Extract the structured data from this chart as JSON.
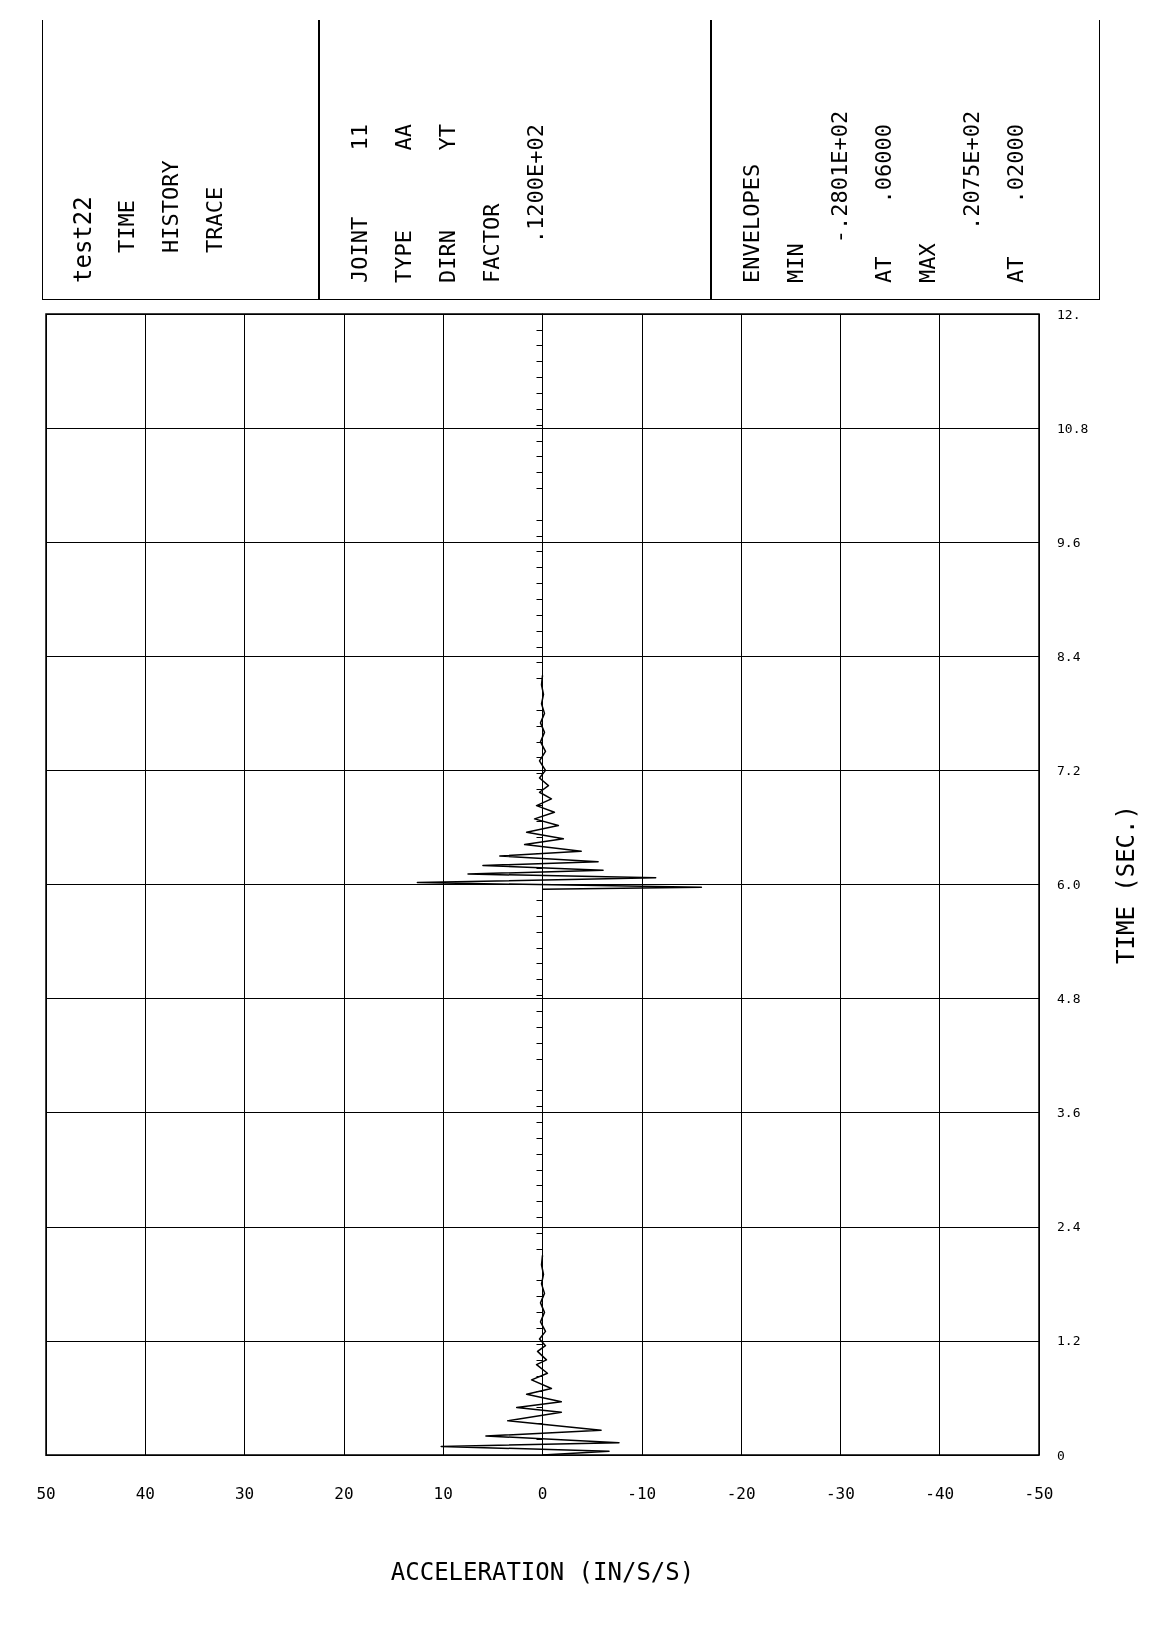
{
  "chart_data": {
    "type": "line",
    "title": "test22",
    "subtitle": "TIME\nHISTORY\nTRACE",
    "annotations": [
      "JOINT     11\nTYPE      AA\nDIRN      YT\nFACTOR\n   .1200E+02",
      "ENVELOPES\nMIN\n   -.2801E+02\nAT    .06000\nMAX\n    .2075E+02\nAT    .02000"
    ],
    "xlabel": "ACCELERATION (IN/S/S)",
    "ylabel": "TIME (SEC.)",
    "ylim": [
      0,
      12
    ],
    "yticks": [
      0,
      1.2,
      2.4,
      3.6,
      4.8,
      {
        "value": 6,
        "label": "6.0"
      },
      7.2,
      8.4,
      9.6,
      10.8,
      {
        "value": 12,
        "label": "12."
      }
    ],
    "xlim": [
      50,
      -50
    ],
    "xticks": [
      50,
      40,
      30,
      20,
      10,
      0,
      -10,
      -20,
      -30,
      -40,
      -50
    ],
    "grid": true,
    "marker": "none",
    "line_style": "solid",
    "series": [
      {
        "color": "#000000",
        "values": [
          0,
          0.04,
          0.09,
          0.13,
          0.2,
          0.26,
          0.36,
          0.45,
          0.5,
          0.56,
          0.64,
          0.7,
          0.79,
          0.86,
          0.95,
          1.0,
          1.09,
          1.15,
          1.22,
          1.3,
          1.4,
          1.5,
          1.6,
          1.7,
          1.8,
          1.9,
          2.0,
          2.1,
          null,
          5.95,
          5.97,
          6.02,
          6.07,
          6.11,
          6.15,
          6.2,
          6.24,
          6.3,
          6.35,
          6.42,
          6.48,
          6.55,
          6.62,
          6.69,
          6.76,
          6.83,
          6.9,
          6.97,
          7.04,
          7.12,
          7.2,
          7.3,
          7.4,
          7.5,
          7.6,
          7.7,
          7.8,
          7.9,
          8.0,
          8.1,
          8.2
        ],
        "x": [
          0,
          -6.7,
          10.2,
          -7.7,
          5.7,
          -5.9,
          3.5,
          -1.9,
          2.6,
          -1.9,
          1.6,
          -0.9,
          1.1,
          -0.5,
          0.6,
          -0.4,
          0.5,
          -0.3,
          0.3,
          -0.3,
          0.2,
          -0.2,
          0.2,
          -0.2,
          0.1,
          -0.1,
          0.1,
          0,
          null,
          0,
          -16,
          12.6,
          -11.4,
          7.5,
          -6.1,
          6.0,
          -5.6,
          4.3,
          -3.9,
          1.8,
          -2.1,
          1.6,
          -1.6,
          0.8,
          -1.2,
          0.6,
          -0.9,
          0.3,
          -0.6,
          0.3,
          -0.3,
          0.3,
          -0.3,
          0.2,
          -0.2,
          0.2,
          -0.2,
          0.1,
          -0.1,
          0.1,
          0
        ]
      }
    ]
  }
}
